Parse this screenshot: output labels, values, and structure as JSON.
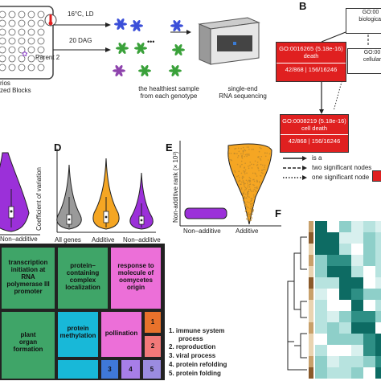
{
  "panelA": {
    "labels": {
      "temp_line1": "16°C, LD",
      "dag": "20 DAG",
      "parent2": "Parent 2",
      "left_line1": "rios",
      "left_line2": "zed Blocks",
      "healthiest_line1": "the healthiest sample",
      "healthiest_line2": "from each genotype",
      "rnaseq_line1": "single-end",
      "rnaseq_line2": "RNA sequencing",
      "dots": "•••"
    }
  },
  "panelB": {
    "letter": "B",
    "boxes": {
      "top_line1": "GO:00",
      "top_line2": "biological",
      "mid_right_line1": "GO:00",
      "mid_right_line2": "cellular",
      "death_line1": "GO:0016265 (5.18e-16)",
      "death_line2": "death",
      "death_stats": "42/868 | 156/16246",
      "celldeath_line1": "GO:0008219 (5.18e-16)",
      "celldeath_line2": "cell death",
      "celldeath_stats": "42/868 | 156/16246"
    },
    "legend": {
      "is_a": "is a",
      "two": "two significant nodes",
      "one": "one significant node"
    },
    "colors": {
      "significant": "#e02020"
    }
  },
  "panelC": {
    "xlabel": "Non–additive"
  },
  "panelD": {
    "letter": "D",
    "ylabel": "Coefficient of variation",
    "categories": [
      "All genes",
      "Additive",
      "Non–additive"
    ],
    "colors": [
      "#9a9a9a",
      "#f5a623",
      "#9b30d9"
    ]
  },
  "panelE": {
    "letter": "E",
    "ylabel": "Non-additive rank (× 10³)",
    "categories": [
      "Non–additive",
      "Additive"
    ]
  },
  "panelF": {
    "letter": "F"
  },
  "treemap": {
    "cells": {
      "transcription": [
        "transcription",
        "initiation at",
        "RNA",
        "polymerase III",
        "promoter"
      ],
      "protein_containing": [
        "protein–",
        "containing",
        "complex",
        "localization"
      ],
      "response": [
        "response to",
        "molecule of",
        "oomycetes",
        "origin"
      ],
      "plant_organ": [
        "plant",
        "organ",
        "formation"
      ],
      "protein_methylation": [
        "protein",
        "methylation"
      ],
      "pollination": [
        "pollination"
      ],
      "n1": "1",
      "n2": "2",
      "n3": "3",
      "n4": "4",
      "n5": "5"
    },
    "legend": [
      "1. immune system",
      "process",
      "2. reproduction",
      "3. viral process",
      "4. protein refolding",
      "5. protein folding"
    ]
  }
}
